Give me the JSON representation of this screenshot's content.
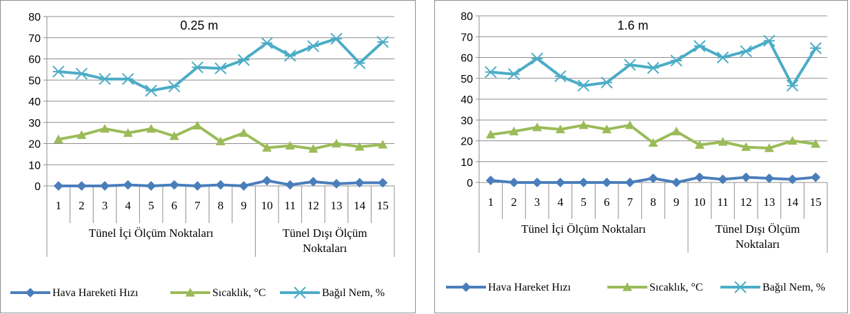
{
  "colors": {
    "speed": "#4a7ebb",
    "temp": "#9bbb59",
    "humidity": "#4bacc6",
    "grid": "#8c8c8c"
  },
  "chart_data": [
    {
      "type": "line",
      "title": "0.25 m",
      "categories": [
        "1",
        "2",
        "3",
        "4",
        "5",
        "6",
        "7",
        "8",
        "9",
        "10",
        "11",
        "12",
        "13",
        "14",
        "15"
      ],
      "groups": [
        {
          "label_lines": [
            "Tünel İçi Ölçüm Noktaları"
          ],
          "from": 1,
          "to": 9
        },
        {
          "label_lines": [
            "Tünel Dışı Ölçüm",
            "Noktaları"
          ],
          "from": 10,
          "to": 15
        }
      ],
      "ylim": [
        0,
        80
      ],
      "yticks": [
        0,
        10,
        20,
        30,
        40,
        50,
        60,
        70,
        80
      ],
      "grid": true,
      "legend_position": "bottom",
      "series": [
        {
          "name": "Hava Hareketi Hızı",
          "marker": "diamond",
          "color": "#4a7ebb",
          "values": [
            0,
            0,
            0,
            0.5,
            0,
            0.5,
            0,
            0.5,
            0,
            2.5,
            0.5,
            2,
            1,
            1.5,
            1.5
          ]
        },
        {
          "name": "Sıcaklık, °C",
          "marker": "triangle",
          "color": "#9bbb59",
          "values": [
            22,
            24,
            27,
            25,
            27,
            23.5,
            28.5,
            21,
            25,
            18,
            19,
            17.5,
            20,
            18.5,
            19.5
          ]
        },
        {
          "name": "Bağıl Nem, %",
          "marker": "star",
          "color": "#4bacc6",
          "values": [
            54,
            53,
            50.5,
            50.5,
            45,
            47,
            56,
            55.5,
            59.5,
            67.5,
            61.5,
            66,
            69.5,
            58,
            68
          ]
        }
      ]
    },
    {
      "type": "line",
      "title": "1.6 m",
      "categories": [
        "1",
        "2",
        "3",
        "4",
        "5",
        "6",
        "7",
        "8",
        "9",
        "10",
        "11",
        "12",
        "13",
        "14",
        "15"
      ],
      "groups": [
        {
          "label_lines": [
            "Tünel İçi Ölçüm Noktaları"
          ],
          "from": 1,
          "to": 9
        },
        {
          "label_lines": [
            "Tünel Dışı Ölçüm",
            "Noktaları"
          ],
          "from": 10,
          "to": 15
        }
      ],
      "ylim": [
        0,
        80
      ],
      "yticks": [
        0,
        10,
        20,
        30,
        40,
        50,
        60,
        70,
        80
      ],
      "grid": true,
      "legend_position": "bottom",
      "series": [
        {
          "name": "Hava Hareket Hızı",
          "marker": "diamond",
          "color": "#4a7ebb",
          "values": [
            1,
            0,
            0,
            0,
            0,
            0,
            0,
            2,
            0,
            2.5,
            1.5,
            2.5,
            2,
            1.5,
            2.5
          ]
        },
        {
          "name": "Sıcaklık, °C",
          "marker": "triangle",
          "color": "#9bbb59",
          "values": [
            23,
            24.5,
            26.5,
            25.5,
            27.5,
            25.5,
            27.5,
            19,
            24.5,
            18,
            19.5,
            17,
            16.5,
            20,
            18.5
          ]
        },
        {
          "name": "Bağıl Nem, %",
          "marker": "star",
          "color": "#4bacc6",
          "values": [
            53,
            52,
            59.5,
            51,
            46.5,
            48,
            56.5,
            55,
            58.5,
            65.5,
            60,
            63,
            68,
            46.5,
            64.5
          ]
        }
      ]
    }
  ]
}
